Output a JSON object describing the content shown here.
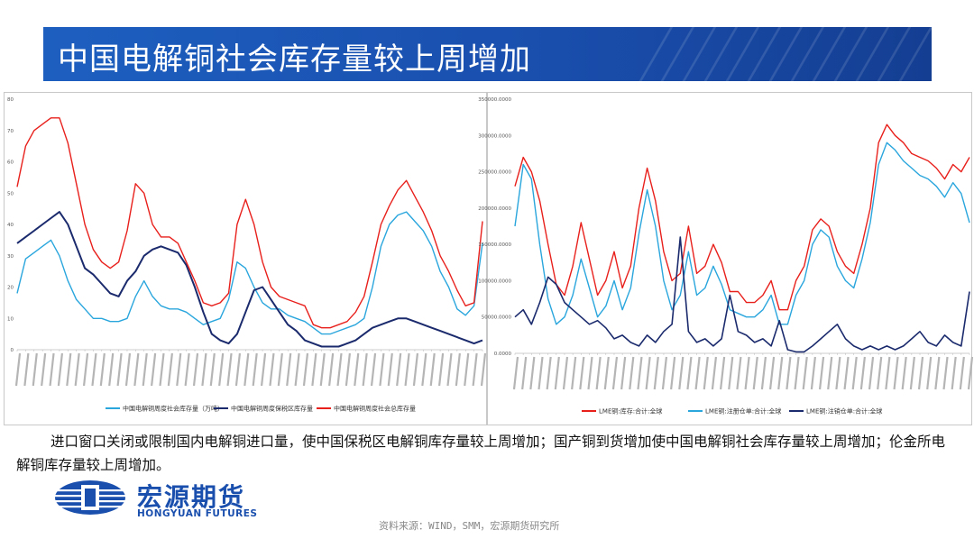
{
  "header": {
    "title": "中国电解铜社会库存量较上周增加"
  },
  "commentary": "进口窗口关闭或限制国内电解铜进口量，使中国保税区电解铜库存量较上周增加；国产铜到货增加使中国电解铜社会库存量较上周增加；伦金所电解铜库存量较上周增加。",
  "logo": {
    "cn": "宏源期货",
    "en": "HONGYUAN FUTURES"
  },
  "source": "资料来源：WIND，SMM，宏源期货研究所",
  "colors": {
    "banner": "#1a4fae",
    "red": "#e8201c",
    "cyan": "#2aa6dd",
    "navy": "#1a2a6c"
  },
  "chart_data": [
    {
      "type": "line",
      "ylim": [
        0,
        80
      ],
      "yticks": [
        "0",
        "10",
        "20",
        "30",
        "40",
        "50",
        "60",
        "70",
        "80"
      ],
      "x_count": 56,
      "series": [
        {
          "name": "中国电解铜周度社会库存量（万吨）",
          "color": "#2aa6dd",
          "values": [
            18,
            29,
            31,
            33,
            35,
            30,
            22,
            16,
            13,
            10,
            10,
            9,
            9,
            10,
            17,
            22,
            17,
            14,
            13,
            13,
            12,
            10,
            8,
            9,
            10,
            16,
            28,
            26,
            20,
            15,
            13,
            13,
            11,
            10,
            9,
            7,
            5,
            5,
            6,
            7,
            8,
            10,
            20,
            33,
            40,
            43,
            44,
            41,
            38,
            33,
            25,
            20,
            13,
            11,
            14,
            34
          ]
        },
        {
          "name": "中国电解铜周度保税区库存量",
          "color": "#1a2a6c",
          "values": [
            34,
            36,
            38,
            40,
            42,
            44,
            40,
            33,
            26,
            24,
            21,
            18,
            17,
            22,
            25,
            30,
            32,
            33,
            32,
            31,
            27,
            20,
            12,
            5,
            3,
            2,
            5,
            12,
            19,
            20,
            16,
            12,
            8,
            6,
            3,
            2,
            1,
            1,
            1,
            2,
            3,
            5,
            7,
            8,
            9,
            10,
            10,
            9,
            8,
            7,
            6,
            5,
            4,
            3,
            2,
            3
          ]
        },
        {
          "name": "中国电解铜周度社会总库存量",
          "color": "#e8201c",
          "values": [
            52,
            65,
            70,
            72,
            74,
            74,
            66,
            53,
            40,
            32,
            28,
            26,
            28,
            38,
            53,
            50,
            40,
            36,
            36,
            34,
            28,
            22,
            15,
            14,
            15,
            18,
            40,
            48,
            40,
            28,
            20,
            17,
            16,
            15,
            14,
            8,
            7,
            7,
            8,
            9,
            12,
            17,
            28,
            40,
            46,
            51,
            54,
            49,
            44,
            38,
            30,
            25,
            19,
            14,
            15,
            41
          ]
        }
      ]
    },
    {
      "type": "line",
      "ylim": [
        0,
        350000
      ],
      "yticks": [
        "0.0000",
        "50000.0000",
        "100000.0000",
        "150000.0000",
        "200000.0000",
        "250000.0000",
        "300000.0000",
        "350000.0000"
      ],
      "x_count": 56,
      "series": [
        {
          "name": "LME铜:库存:合计:全球",
          "color": "#e8201c",
          "values": [
            230000,
            270000,
            250000,
            210000,
            150000,
            95000,
            80000,
            120000,
            180000,
            130000,
            80000,
            100000,
            140000,
            90000,
            120000,
            200000,
            255000,
            210000,
            140000,
            100000,
            110000,
            175000,
            110000,
            120000,
            150000,
            125000,
            85000,
            85000,
            70000,
            70000,
            80000,
            100000,
            60000,
            60000,
            100000,
            120000,
            170000,
            185000,
            175000,
            140000,
            120000,
            110000,
            150000,
            200000,
            290000,
            315000,
            300000,
            290000,
            275000,
            270000,
            265000,
            255000,
            240000,
            260000,
            250000,
            270000
          ]
        },
        {
          "name": "LME铜:注册仓单:合计:全球",
          "color": "#2aa6dd",
          "values": [
            175000,
            260000,
            240000,
            150000,
            75000,
            40000,
            50000,
            80000,
            130000,
            90000,
            50000,
            65000,
            100000,
            60000,
            90000,
            165000,
            225000,
            175000,
            100000,
            60000,
            80000,
            140000,
            80000,
            90000,
            120000,
            95000,
            60000,
            55000,
            50000,
            50000,
            60000,
            80000,
            40000,
            40000,
            80000,
            100000,
            150000,
            170000,
            160000,
            120000,
            100000,
            90000,
            130000,
            180000,
            260000,
            290000,
            280000,
            265000,
            255000,
            245000,
            240000,
            230000,
            215000,
            235000,
            220000,
            180000
          ]
        },
        {
          "name": "LME铜:注销仓单:合计:全球",
          "color": "#1a2a6c",
          "values": [
            50000,
            60000,
            40000,
            70000,
            105000,
            95000,
            70000,
            60000,
            50000,
            40000,
            45000,
            35000,
            20000,
            25000,
            15000,
            10000,
            25000,
            15000,
            30000,
            40000,
            160000,
            30000,
            15000,
            20000,
            10000,
            20000,
            80000,
            30000,
            25000,
            15000,
            20000,
            10000,
            45000,
            5000,
            2000,
            2000,
            10000,
            20000,
            30000,
            40000,
            20000,
            10000,
            5000,
            10000,
            5000,
            10000,
            5000,
            10000,
            20000,
            30000,
            15000,
            10000,
            25000,
            15000,
            10000,
            85000
          ]
        }
      ]
    }
  ]
}
